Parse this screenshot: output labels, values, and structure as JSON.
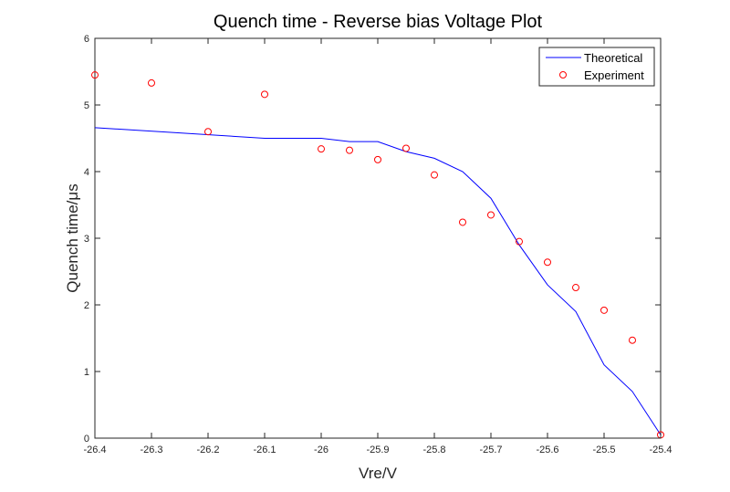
{
  "chart_data": {
    "type": "line",
    "title": "Quench time - Reverse bias Voltage Plot",
    "xlabel": "Vre/V",
    "ylabel": "Quench time/μs",
    "xlim": [
      -26.4,
      -25.4
    ],
    "ylim": [
      0,
      6
    ],
    "grid": false,
    "legend_position": "top-right",
    "x_ticks": [
      "-26.4",
      "-26.3",
      "-26.2",
      "-26.1",
      "-26",
      "-25.9",
      "-25.8",
      "-25.7",
      "-25.6",
      "-25.5",
      "-25.4"
    ],
    "y_ticks": [
      "0",
      "1",
      "2",
      "3",
      "4",
      "5",
      "6"
    ],
    "series": [
      {
        "name": "Theoretical",
        "style": "line",
        "color": "#0000ff",
        "x": [
          -26.4,
          -26.1,
          -26.0,
          -25.95,
          -25.9,
          -25.85,
          -25.8,
          -25.75,
          -25.7,
          -25.65,
          -25.6,
          -25.55,
          -25.5,
          -25.45,
          -25.4
        ],
        "values": [
          4.66,
          4.5,
          4.5,
          4.45,
          4.45,
          4.3,
          4.2,
          4.0,
          3.6,
          2.9,
          2.3,
          1.9,
          1.1,
          0.7,
          0.05
        ]
      },
      {
        "name": "Experiment",
        "style": "marker-circle",
        "color": "#ff0000",
        "x": [
          -26.4,
          -26.3,
          -26.2,
          -26.1,
          -26.0,
          -25.95,
          -25.9,
          -25.85,
          -25.8,
          -25.75,
          -25.7,
          -25.65,
          -25.6,
          -25.55,
          -25.5,
          -25.45,
          -25.4
        ],
        "values": [
          5.45,
          5.33,
          4.6,
          5.16,
          4.34,
          4.32,
          4.18,
          4.35,
          3.95,
          3.24,
          3.35,
          2.95,
          2.64,
          2.26,
          1.92,
          1.47,
          0.05
        ]
      }
    ]
  }
}
